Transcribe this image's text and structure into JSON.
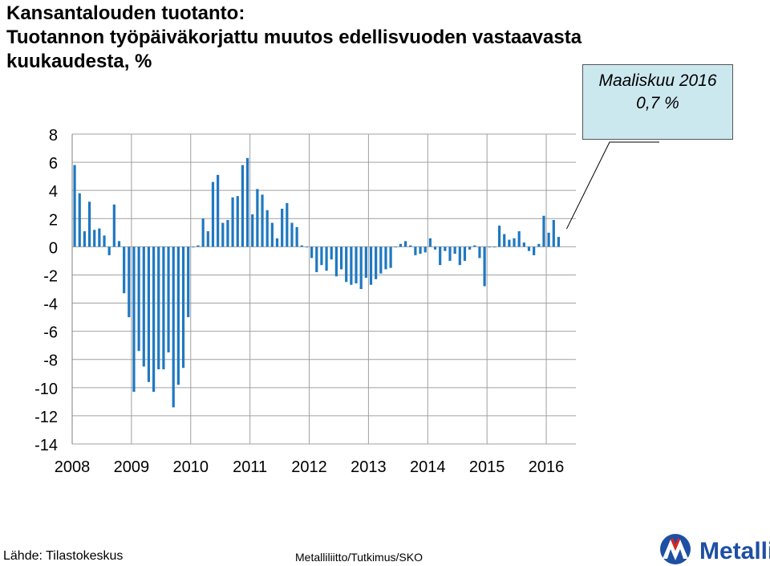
{
  "title": {
    "line1": "Kansantalouden tuotanto:",
    "line2": "Tuotannon työpäiväkorjattu muutos edellisvuoden vastaavasta",
    "line3": "kuukaudesta, %"
  },
  "callout": {
    "line1": "Maaliskuu 2016",
    "line2": "0,7 %"
  },
  "footer": {
    "source": "Lähde: Tilastokeskus",
    "credit": "Metalliliitto/Tutkimus/SKO"
  },
  "logo": {
    "text": "Metalli",
    "icon": "metalli-logo-icon"
  },
  "colors": {
    "bar": "#1f78c1",
    "grid": "#a0a0a0",
    "callout_bg": "#cce8ef",
    "logo_blue": "#1e4fa3",
    "logo_red": "#d9261c"
  },
  "chart_data": {
    "type": "bar",
    "title": "",
    "xlabel": "",
    "ylabel": "",
    "ylim": [
      -14,
      8
    ],
    "yticks": [
      8,
      6,
      4,
      2,
      0,
      -2,
      -4,
      -6,
      -8,
      -10,
      -12,
      -14
    ],
    "ytick_labels": [
      "8",
      "6",
      "4",
      "2",
      "0",
      "-2",
      "-4",
      "-6",
      "-8",
      "-10",
      "-12",
      "-14"
    ],
    "grid": true,
    "x_year_labels": [
      "2008",
      "2009",
      "2010",
      "2011",
      "2012",
      "2013",
      "2014",
      "2015",
      "2016"
    ],
    "x_start": "2008-01",
    "x_end": "2016-03",
    "series": [
      {
        "values": [
          5.8,
          3.8,
          1.1,
          3.2,
          1.2,
          1.3,
          0.8,
          -0.6,
          3.0,
          0.4,
          -3.3,
          -5.0,
          -10.3,
          -7.4,
          -8.5,
          -9.6,
          -10.3,
          -8.7,
          -8.7,
          -7.5,
          -11.4,
          -9.8,
          -8.6,
          -5.0,
          0.0,
          0.1,
          2.0,
          1.1,
          4.6,
          5.1,
          1.7,
          1.9,
          3.5,
          3.6,
          5.8,
          6.3,
          2.3,
          4.1,
          3.7,
          2.6,
          1.7,
          0.6,
          2.7,
          3.1,
          1.7,
          1.4,
          0.1,
          0.0,
          -0.8,
          -1.8,
          -1.3,
          -1.7,
          -0.9,
          -2.1,
          -1.6,
          -2.5,
          -2.7,
          -2.6,
          -3.0,
          -2.2,
          -2.7,
          -2.3,
          -1.9,
          -1.6,
          -1.5,
          0.0,
          0.2,
          0.4,
          0.1,
          -0.6,
          -0.5,
          -0.4,
          0.6,
          -0.2,
          -1.3,
          -0.3,
          -1.0,
          -0.5,
          -1.3,
          -1.0,
          -0.2,
          0.1,
          -0.8,
          -2.8,
          0.0,
          0.0,
          1.5,
          0.9,
          0.5,
          0.6,
          1.1,
          0.3,
          -0.3,
          -0.6,
          0.2,
          2.2,
          1.0,
          1.9,
          0.7
        ]
      }
    ]
  }
}
